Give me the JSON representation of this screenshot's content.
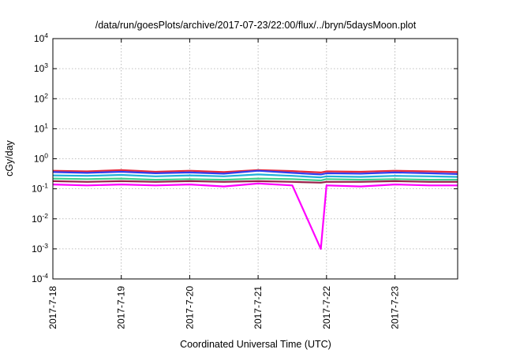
{
  "chart_data": {
    "type": "line",
    "title": "/data/run/goesPlots/archive/2017-07-23/22:00/flux/../bryn/5daysMoon.plot",
    "xlabel": "Coordinated Universal Time (UTC)",
    "ylabel": "cGy/day",
    "yscale": "log",
    "ylim": [
      0.0001,
      10000
    ],
    "xlim": [
      "2017-07-18 00:00",
      "2017-07-23 22:00"
    ],
    "y_ticks": [
      {
        "base": "10",
        "exp": "-4"
      },
      {
        "base": "10",
        "exp": "-3"
      },
      {
        "base": "10",
        "exp": "-2"
      },
      {
        "base": "10",
        "exp": "-1"
      },
      {
        "base": "10",
        "exp": "0"
      },
      {
        "base": "10",
        "exp": "1"
      },
      {
        "base": "10",
        "exp": "2"
      },
      {
        "base": "10",
        "exp": "3"
      },
      {
        "base": "10",
        "exp": "4"
      }
    ],
    "x_ticks": [
      "2017-7-18",
      "2017-7-19",
      "2017-7-20",
      "2017-7-21",
      "2017-7-22",
      "2017-7-23"
    ],
    "grid": true,
    "legend": "none",
    "colors": [
      "#e8283a",
      "#2f3ff0",
      "#20b0d8",
      "#3fcf8f",
      "#9a1f4a",
      "#ff00ff"
    ],
    "x": [
      "2017-7-18 00:00",
      "2017-7-18 12:00",
      "2017-7-19 00:00",
      "2017-7-19 12:00",
      "2017-7-20 00:00",
      "2017-7-20 12:00",
      "2017-7-21 00:00",
      "2017-7-21 12:00",
      "2017-7-21 22:00",
      "2017-7-22 00:00",
      "2017-7-22 12:00",
      "2017-7-23 00:00",
      "2017-7-23 12:00",
      "2017-7-23 22:00"
    ],
    "series": [
      {
        "values": [
          0.4,
          0.38,
          0.42,
          0.37,
          0.4,
          0.36,
          0.42,
          0.39,
          0.35,
          0.38,
          0.37,
          0.4,
          0.38,
          0.36
        ]
      },
      {
        "values": [
          0.36,
          0.34,
          0.37,
          0.33,
          0.35,
          0.32,
          0.4,
          0.34,
          0.3,
          0.33,
          0.32,
          0.35,
          0.33,
          0.31
        ]
      },
      {
        "values": [
          0.28,
          0.27,
          0.29,
          0.26,
          0.28,
          0.26,
          0.3,
          0.27,
          0.24,
          0.26,
          0.25,
          0.27,
          0.26,
          0.25
        ]
      },
      {
        "values": [
          0.22,
          0.21,
          0.22,
          0.2,
          0.21,
          0.2,
          0.22,
          0.21,
          0.19,
          0.21,
          0.2,
          0.21,
          0.2,
          0.2
        ]
      },
      {
        "values": [
          0.18,
          0.17,
          0.18,
          0.17,
          0.18,
          0.17,
          0.18,
          0.17,
          0.16,
          0.17,
          0.17,
          0.18,
          0.17,
          0.17
        ]
      },
      {
        "values": [
          0.14,
          0.13,
          0.14,
          0.13,
          0.14,
          0.12,
          0.15,
          0.13,
          0.001,
          0.13,
          0.12,
          0.14,
          0.13,
          0.13
        ]
      }
    ]
  }
}
